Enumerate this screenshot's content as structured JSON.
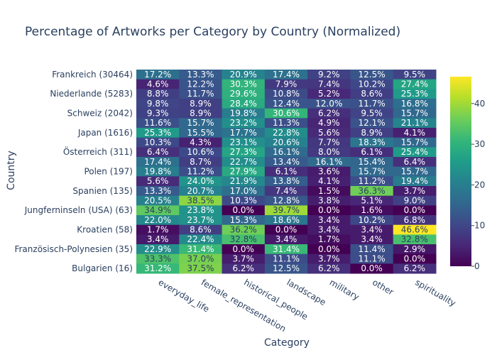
{
  "chart_data": {
    "type": "heatmap",
    "title": "Percentage of Artworks per Category by Country (Normalized)",
    "xlabel": "Category",
    "ylabel": "Country",
    "colorscale": "Viridis",
    "zrange": [
      0,
      46.6
    ],
    "colorbar_ticks": [
      0,
      10,
      20,
      30,
      40
    ],
    "categories": [
      "everyday_life",
      "female_representation",
      "historical_people",
      "landscape",
      "military",
      "other",
      "spirituality"
    ],
    "rows": [
      {
        "label": "Frankreich (30464)",
        "values": [
          17.2,
          13.3,
          20.9,
          17.4,
          9.2,
          12.5,
          9.5
        ]
      },
      {
        "label": "",
        "values": [
          4.6,
          12.2,
          30.3,
          7.9,
          7.4,
          10.2,
          27.4
        ]
      },
      {
        "label": "Niederlande (5283)",
        "values": [
          8.8,
          11.7,
          29.6,
          10.8,
          5.2,
          8.6,
          25.3
        ]
      },
      {
        "label": "",
        "values": [
          9.8,
          8.9,
          28.4,
          12.4,
          12.0,
          11.7,
          16.8
        ]
      },
      {
        "label": "Schweiz (2042)",
        "values": [
          9.3,
          8.9,
          19.8,
          30.6,
          6.2,
          9.5,
          15.7
        ]
      },
      {
        "label": "",
        "values": [
          11.6,
          15.7,
          23.2,
          11.3,
          4.9,
          12.1,
          21.1
        ]
      },
      {
        "label": "Japan (1616)",
        "values": [
          25.3,
          15.5,
          17.7,
          22.8,
          5.6,
          8.9,
          4.1
        ]
      },
      {
        "label": "",
        "values": [
          10.3,
          4.3,
          23.1,
          20.6,
          7.7,
          18.3,
          15.7
        ]
      },
      {
        "label": "Österreich (311)",
        "values": [
          6.4,
          10.6,
          27.3,
          16.1,
          8.0,
          6.1,
          25.4
        ]
      },
      {
        "label": "",
        "values": [
          17.4,
          8.7,
          22.7,
          13.4,
          16.1,
          15.4,
          6.4
        ]
      },
      {
        "label": "Polen (197)",
        "values": [
          19.8,
          11.2,
          27.9,
          6.1,
          3.6,
          15.7,
          15.7
        ]
      },
      {
        "label": "",
        "values": [
          5.6,
          24.0,
          21.9,
          13.8,
          4.1,
          11.2,
          19.4
        ]
      },
      {
        "label": "Spanien (135)",
        "values": [
          13.3,
          20.7,
          17.0,
          7.4,
          1.5,
          36.3,
          3.7
        ]
      },
      {
        "label": "",
        "values": [
          20.5,
          38.5,
          10.3,
          12.8,
          3.8,
          5.1,
          9.0
        ]
      },
      {
        "label": "Jungferninseln (USA) (63)",
        "values": [
          34.9,
          23.8,
          0.0,
          39.7,
          0.0,
          1.6,
          0.0
        ]
      },
      {
        "label": "",
        "values": [
          22.0,
          23.7,
          15.3,
          18.6,
          3.4,
          10.2,
          6.8
        ]
      },
      {
        "label": "Kroatien (58)",
        "values": [
          1.7,
          8.6,
          36.2,
          0.0,
          3.4,
          3.4,
          46.6
        ]
      },
      {
        "label": "",
        "values": [
          3.4,
          22.4,
          32.8,
          3.4,
          1.7,
          3.4,
          32.8
        ]
      },
      {
        "label": "Französisch-Polynesien (35)",
        "values": [
          22.9,
          31.4,
          0.0,
          31.4,
          0.0,
          11.4,
          2.9
        ]
      },
      {
        "label": "",
        "values": [
          33.3,
          37.0,
          3.7,
          11.1,
          3.7,
          11.1,
          0.0
        ]
      },
      {
        "label": "Bulgarien (16)",
        "values": [
          31.2,
          37.5,
          6.2,
          12.5,
          6.2,
          0.0,
          6.2
        ]
      }
    ]
  }
}
